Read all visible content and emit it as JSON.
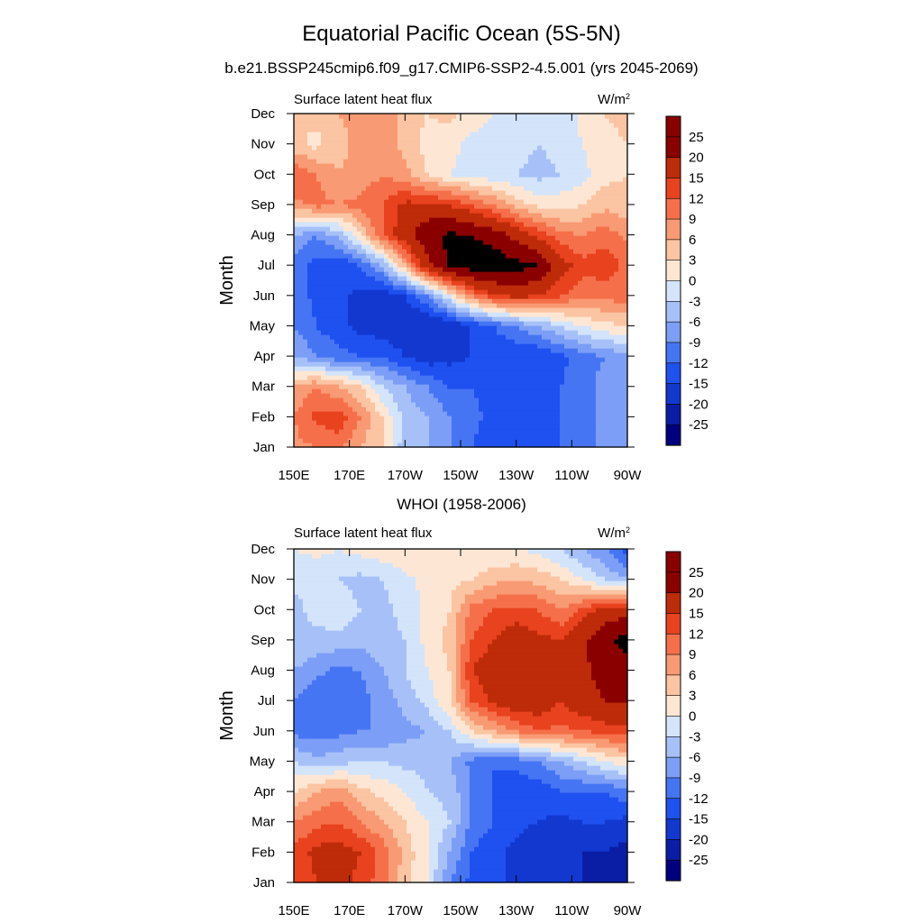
{
  "figure": {
    "title": "Equatorial Pacific Ocean (5S-5N)",
    "subtitle": "b.e21.BSSP245cmip6.f09_g17.CMIP6-SSP2-4.5.001 (yrs 2045-2069)"
  },
  "chart_data": [
    {
      "type": "heatmap",
      "panel_title": "",
      "left_string": "Surface latent heat flux",
      "units": "W/m",
      "units_superscript": "2",
      "ylabel": "Month",
      "x_tick_labels": [
        "150E",
        "170E",
        "170W",
        "150W",
        "130W",
        "110W",
        "90W"
      ],
      "y_tick_labels": [
        "Jan",
        "Feb",
        "Mar",
        "Apr",
        "May",
        "Jun",
        "Jul",
        "Aug",
        "Sep",
        "Oct",
        "Nov",
        "Dec"
      ],
      "xlim_deg_east": [
        150,
        270
      ],
      "colorbar_levels": [
        "-25",
        "-20",
        "-15",
        "-12",
        "-9",
        "-6",
        "-3",
        "0",
        "3",
        "6",
        "9",
        "12",
        "15",
        "20",
        "25"
      ],
      "grid": [
        [
          8,
          9,
          10,
          6,
          3,
          -5,
          -6,
          -9,
          -12,
          -15,
          -14,
          -13,
          -12,
          -10,
          -8,
          -6
        ],
        [
          9,
          13,
          14,
          9,
          3,
          -4,
          -6,
          -9,
          -11,
          -13,
          -15,
          -14,
          -12,
          -10,
          -8,
          -6
        ],
        [
          6,
          9,
          6,
          3,
          -3,
          -6,
          -9,
          -12,
          -12,
          -14,
          -15,
          -15,
          -12,
          -10,
          -8,
          -6
        ],
        [
          -6,
          -9,
          -11,
          -12,
          -12,
          -15,
          -17,
          -16,
          -15,
          -14,
          -15,
          -15,
          -13,
          -10,
          -9,
          -7
        ],
        [
          -9,
          -12,
          -14,
          -16,
          -17,
          -18,
          -20,
          -18,
          -15,
          -12,
          -9,
          -6,
          -3,
          0,
          2,
          3
        ],
        [
          -10,
          -13,
          -14,
          -16,
          -17,
          -15,
          -9,
          0,
          9,
          14,
          16,
          15,
          12,
          10,
          10,
          11
        ],
        [
          -10,
          -13,
          -15,
          -12,
          -6,
          6,
          18,
          26,
          28,
          28,
          27,
          25,
          17,
          13,
          14,
          11
        ],
        [
          -6,
          -9,
          -5,
          3,
          12,
          18,
          24,
          26,
          25,
          23,
          18,
          14,
          10,
          9,
          11,
          8
        ],
        [
          8,
          10,
          9,
          10,
          12,
          16,
          16,
          15,
          12,
          9,
          5,
          2,
          2,
          3,
          5,
          4
        ],
        [
          12,
          9,
          6,
          7,
          9,
          7,
          3,
          0,
          -1,
          -2,
          -3,
          -4,
          -3,
          -1,
          2,
          3
        ],
        [
          4,
          2,
          5,
          7,
          8,
          5,
          2,
          1,
          -1,
          -2,
          -2,
          -3,
          -2,
          0,
          2,
          3
        ],
        [
          3,
          4,
          6,
          7,
          9,
          4,
          3,
          4,
          2,
          0,
          -1,
          -2,
          -2,
          1,
          3,
          4
        ]
      ]
    },
    {
      "type": "heatmap",
      "panel_title": "WHOI (1958-2006)",
      "left_string": "Surface latent heat flux",
      "units": "W/m",
      "units_superscript": "2",
      "ylabel": "Month",
      "x_tick_labels": [
        "150E",
        "170E",
        "170W",
        "150W",
        "130W",
        "110W",
        "90W"
      ],
      "y_tick_labels": [
        "Jan",
        "Feb",
        "Mar",
        "Apr",
        "May",
        "Jun",
        "Jul",
        "Aug",
        "Sep",
        "Oct",
        "Nov",
        "Dec"
      ],
      "xlim_deg_east": [
        150,
        270
      ],
      "colorbar_levels": [
        "-25",
        "-20",
        "-15",
        "-12",
        "-9",
        "-6",
        "-3",
        "0",
        "3",
        "6",
        "9",
        "12",
        "15",
        "20",
        "25"
      ],
      "grid": [
        [
          12,
          15,
          16,
          14,
          10,
          4,
          0,
          -9,
          -13,
          -14,
          -16,
          -18,
          -19,
          -20,
          -22,
          -24
        ],
        [
          13,
          16,
          17,
          15,
          11,
          5,
          0,
          -6,
          -12,
          -14,
          -16,
          -18,
          -18,
          -20,
          -20,
          -23
        ],
        [
          9,
          11,
          12,
          9,
          6,
          3,
          0,
          -3,
          -10,
          -12,
          -14,
          -15,
          -16,
          -15,
          -15,
          -16
        ],
        [
          3,
          6,
          8,
          4,
          2,
          0,
          -3,
          -4,
          -9,
          -12,
          -14,
          -14,
          -12,
          -12,
          -12,
          -10
        ],
        [
          -3,
          -5,
          -4,
          -3,
          -3,
          -4,
          -4,
          -6,
          -10,
          -12,
          -11,
          -9,
          -6,
          -3,
          0,
          2
        ],
        [
          -10,
          -11,
          -10,
          -9,
          -9,
          -7,
          -6,
          -3,
          3,
          6,
          9,
          12,
          11,
          12,
          13,
          14
        ],
        [
          -9,
          -12,
          -11,
          -10,
          -8,
          -5,
          -2,
          3,
          12,
          16,
          18,
          18,
          15,
          18,
          20,
          20
        ],
        [
          -6,
          -8,
          -10,
          -9,
          -6,
          -3,
          0,
          3,
          15,
          18,
          20,
          20,
          18,
          19,
          22,
          22
        ],
        [
          -3,
          -4,
          -4,
          -5,
          -4,
          -3,
          1,
          4,
          12,
          15,
          18,
          16,
          15,
          19,
          24,
          27
        ],
        [
          -4,
          -2,
          -1,
          -3,
          -4,
          -2,
          1,
          3,
          10,
          12,
          13,
          12,
          9,
          13,
          17,
          18
        ],
        [
          -2,
          -3,
          -3,
          -4,
          -3,
          -1,
          1,
          2,
          3,
          5,
          6,
          5,
          3,
          0,
          -3,
          -6
        ],
        [
          0,
          1,
          0,
          1,
          2,
          3,
          3,
          2,
          1,
          0,
          0,
          -1,
          -3,
          -6,
          -9,
          -14
        ]
      ]
    }
  ],
  "colors": {
    "palette": [
      "#00007f",
      "#0a1ea5",
      "#1238d0",
      "#1f50f0",
      "#4675f4",
      "#7c9ef6",
      "#a7c1f8",
      "#d3e4fb",
      "#fde7d4",
      "#fbc4a2",
      "#f89a73",
      "#f5704a",
      "#e8421e",
      "#be2b09",
      "#8a0000"
    ]
  }
}
